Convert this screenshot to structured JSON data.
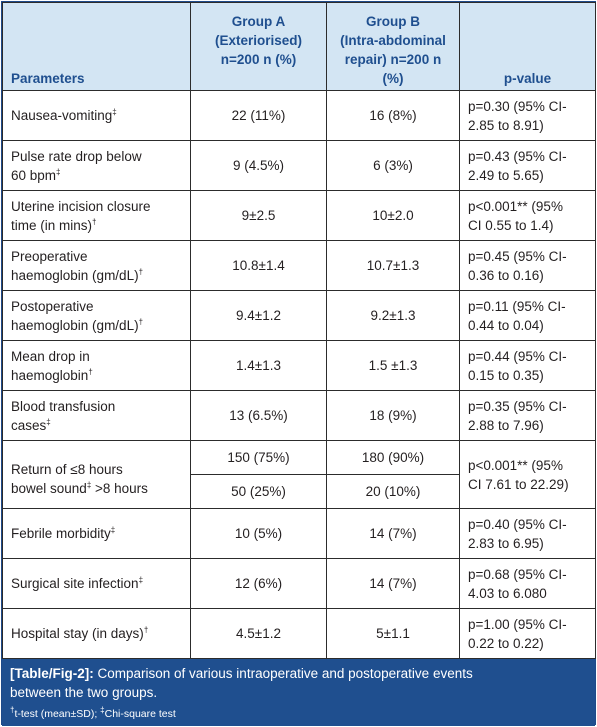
{
  "header": {
    "parameters": "Parameters",
    "group_a": [
      "Group A",
      "(Exteriorised)",
      "n=200 n (%)"
    ],
    "group_b": [
      "Group B",
      "(Intra-abdominal",
      "repair) n=200 n (%)"
    ],
    "pvalue": "p-value"
  },
  "rows": [
    {
      "name": "Nausea-vomiting",
      "mark": "‡",
      "a": "22 (11%)",
      "b": "16 (8%)",
      "p": [
        "p=0.30 (95% CI-",
        "2.85 to 8.91)"
      ]
    },
    {
      "name1": "Pulse rate drop below",
      "name2": "60 bpm",
      "mark": "‡",
      "a": "9 (4.5%)",
      "b": "6 (3%)",
      "p": [
        "p=0.43 (95% CI-",
        "2.49 to 5.65)"
      ]
    },
    {
      "name1": "Uterine incision closure",
      "name2": "time (in mins)",
      "mark": "†",
      "a": "9±2.5",
      "b": "10±2.0",
      "p": [
        "p<0.001** (95%",
        "CI 0.55 to 1.4)"
      ]
    },
    {
      "name1": "Preoperative",
      "name2": "haemoglobin (gm/dL)",
      "mark": "†",
      "a": "10.8±1.4",
      "b": "10.7±1.3",
      "p": [
        "p=0.45 (95% CI-",
        "0.36 to 0.16)"
      ]
    },
    {
      "name1": "Postoperative",
      "name2": "haemoglobin (gm/dL)",
      "mark": "†",
      "a": "9.4±1.2",
      "b": "9.2±1.3",
      "p": [
        "p=0.11 (95% CI-",
        "0.44 to 0.04)"
      ]
    },
    {
      "name1": "Mean drop in",
      "name2": "haemoglobin",
      "mark": "†",
      "a": "1.4±1.3",
      "b": "1.5 ±1.3",
      "p": [
        "p=0.44 (95% CI-",
        "0.15 to 0.35)"
      ]
    },
    {
      "name1": "Blood transfusion",
      "name2": "cases",
      "mark": "‡",
      "a": "13 (6.5%)",
      "b": "18 (9%)",
      "p": [
        "p=0.35 (95% CI-",
        "2.88 to 7.96)"
      ]
    }
  ],
  "bowel": {
    "line1": "Return of ≤8 hours",
    "line2a": "bowel sound",
    "mark": "‡",
    "line2b": " >8 hours",
    "a1": "150 (75%)",
    "b1": "180 (90%)",
    "a2": "50 (25%)",
    "b2": "20 (10%)",
    "p": [
      "p<0.001** (95%",
      "CI 7.61 to 22.29)"
    ]
  },
  "rows2": [
    {
      "name": "Febrile morbidity",
      "mark": "‡",
      "a": "10 (5%)",
      "b": "14 (7%)",
      "p": [
        "p=0.40 (95% CI-",
        "2.83 to 6.95)"
      ]
    },
    {
      "name": "Surgical site infection",
      "mark": "‡",
      "a": "12 (6%)",
      "b": "14 (7%)",
      "p": [
        "p=0.68 (95% CI-",
        "4.03 to 6.080"
      ]
    },
    {
      "name": "Hospital stay (in days)",
      "mark": "†",
      "a": "4.5±1.2",
      "b": "5±1.1",
      "p": [
        "p=1.00 (95% CI-",
        "0.22 to 0.22)"
      ]
    }
  ],
  "caption": {
    "label": "[Table/Fig-2]:",
    "text1": " Comparison of various intraoperative and postoperative events",
    "text2": "between the two groups."
  },
  "footnote": {
    "m1": "†",
    "t1": "t-test (mean±SD); ",
    "m2": "‡",
    "t2": "Chi-square test"
  },
  "colors": {
    "header_bg": "#d3e5f3",
    "header_text": "#1f4f8f",
    "caption_bg": "#1f4f8f"
  }
}
